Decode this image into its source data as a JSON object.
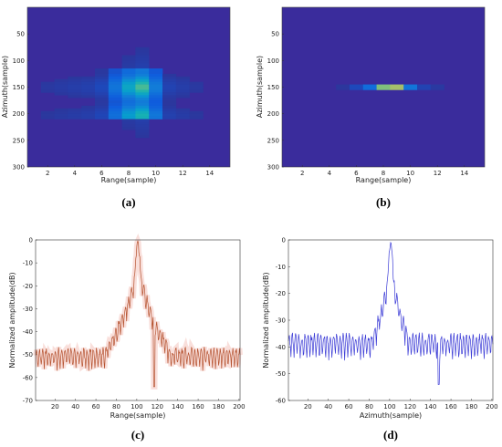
{
  "chart_data": [
    {
      "type": "heatmap",
      "caption": "(a)",
      "xlabel": "Range(sample)",
      "ylabel": "Azimuth(sample)",
      "xlim": [
        0.5,
        15.5
      ],
      "ylim": [
        0,
        300
      ],
      "y_reversed": true,
      "xticks": [
        2,
        4,
        6,
        8,
        10,
        12,
        14
      ],
      "yticks": [
        50,
        100,
        150,
        200,
        250,
        300
      ],
      "colormap": "parula",
      "description_of_peak": {
        "range_center": 8.5,
        "azimuth_center": 160
      },
      "range_profile": [
        0.04,
        0.06,
        0.07,
        0.08,
        0.09,
        0.12,
        0.35,
        0.62,
        0.78,
        0.4,
        0.1,
        0.08,
        0.06,
        0.04,
        0.04
      ],
      "azimuth_span": [
        115,
        210
      ]
    },
    {
      "type": "heatmap",
      "caption": "(b)",
      "xlabel": "Range(sample)",
      "ylabel": "Azimuth(sample)",
      "xlim": [
        0.5,
        15.5
      ],
      "ylim": [
        0,
        300
      ],
      "y_reversed": true,
      "xticks": [
        2,
        4,
        6,
        8,
        10,
        12,
        14
      ],
      "yticks": [
        50,
        100,
        150,
        200,
        250,
        300
      ],
      "colormap": "parula",
      "range_profile": [
        0.0,
        0.0,
        0.0,
        0.0,
        0.05,
        0.12,
        0.3,
        0.85,
        0.9,
        0.35,
        0.1,
        0.06,
        0.0,
        0.0,
        0.0
      ],
      "peak_azimuth": 150
    },
    {
      "type": "line",
      "caption": "(c)",
      "xlabel": "Range(sample)",
      "ylabel": "Normalized amplitude(dB)",
      "xlim": [
        1,
        201
      ],
      "ylim": [
        -70,
        0
      ],
      "xticks": [
        20,
        40,
        60,
        80,
        100,
        120,
        140,
        160,
        180,
        200
      ],
      "yticks": [
        0,
        -10,
        -20,
        -30,
        -40,
        -50,
        -60,
        -70
      ],
      "color": "#b5522f",
      "peak_x": 101,
      "sidelobe_floor_db": -48,
      "max_null_db": -64,
      "max_null_x": 117
    },
    {
      "type": "line",
      "caption": "(d)",
      "xlabel": "Azimuth(sample)",
      "ylabel": "Normalized amplitude(dB)",
      "xlim": [
        1,
        201
      ],
      "ylim": [
        -60,
        0
      ],
      "xticks": [
        20,
        40,
        60,
        80,
        100,
        120,
        140,
        160,
        180,
        200
      ],
      "yticks": [
        0,
        -10,
        -20,
        -30,
        -40,
        -50,
        -60
      ],
      "color": "#3b3bd6",
      "peak_x": 101,
      "sidelobe_floor_db": -36,
      "max_null_db": -54,
      "max_null_x": 148
    }
  ]
}
